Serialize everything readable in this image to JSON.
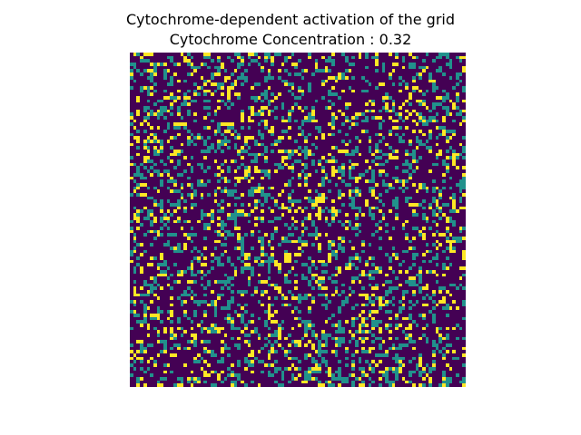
{
  "chart_data": {
    "type": "heatmap",
    "title": "Cytochrome-dependent activation of the grid",
    "subtitle_label": "Cytochrome Concentration",
    "subtitle_separator": " : ",
    "concentration": 0.32,
    "grid_rows": 100,
    "grid_cols": 100,
    "cell_states": [
      0,
      1,
      2
    ],
    "state_fractions": [
      0.68,
      0.2,
      0.12
    ],
    "colormap": "viridis",
    "axis_visible": false,
    "colors": {
      "inactive": "#440154",
      "intermediate": "#21918c",
      "active": "#fde725"
    }
  }
}
